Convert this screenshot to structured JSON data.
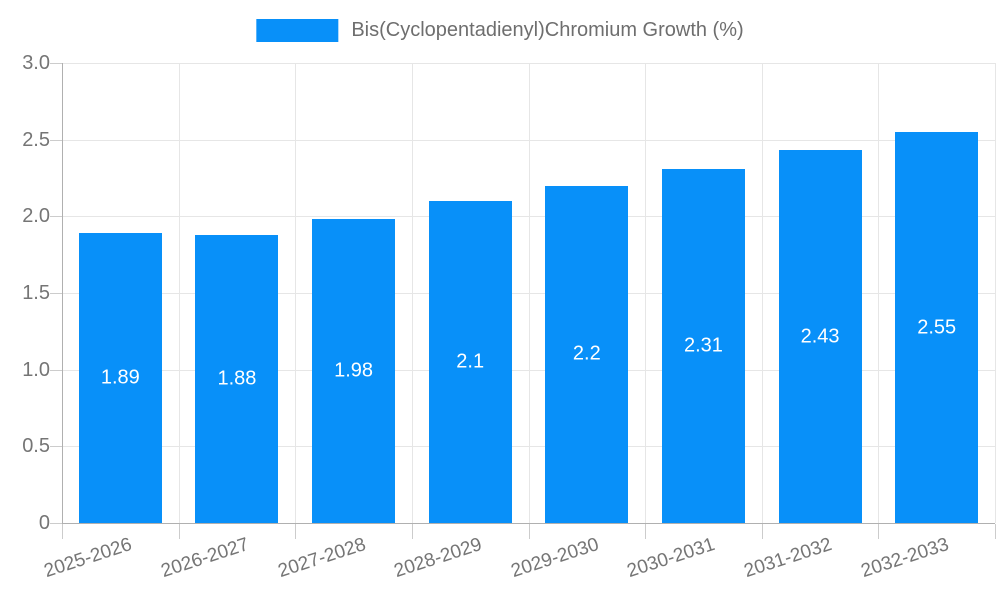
{
  "chart_data": {
    "type": "bar",
    "title": "",
    "legend": {
      "label": "Bis(Cyclopentadienyl)Chromium Growth (%)",
      "position": "top-center"
    },
    "categories": [
      "2025-2026",
      "2026-2027",
      "2027-2028",
      "2028-2029",
      "2029-2030",
      "2030-2031",
      "2031-2032",
      "2032-2033"
    ],
    "series": [
      {
        "name": "Bis(Cyclopentadienyl)Chromium Growth (%)",
        "values": [
          1.89,
          1.88,
          1.98,
          2.1,
          2.2,
          2.31,
          2.43,
          2.55
        ],
        "value_labels": [
          "1.89",
          "1.88",
          "1.98",
          "2.1",
          "2.2",
          "2.31",
          "2.43",
          "2.55"
        ]
      }
    ],
    "xlabel": "",
    "ylabel": "",
    "ylim": [
      0,
      3
    ],
    "yticks": [
      0,
      0.5,
      1,
      1.5,
      2,
      2.5,
      3
    ],
    "ytick_labels": [
      "0",
      "0.5",
      "1.0",
      "1.5",
      "2.0",
      "2.5",
      "3.0"
    ],
    "grid": true,
    "colors": {
      "bar": "#0890f9",
      "gridline": "#e6e6e6",
      "axis_line": "#b0b0b0",
      "tick_mark": "#cccccc",
      "tick_text": "#757575",
      "legend_text": "#6e6e6e",
      "value_text": "#ffffff",
      "background": "#ffffff"
    }
  }
}
